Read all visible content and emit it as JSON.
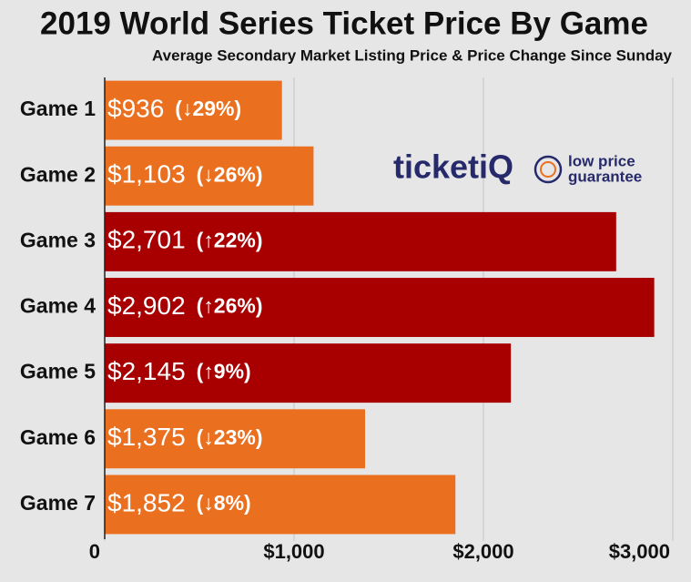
{
  "chart_data": {
    "type": "hbar",
    "title": "2019 World Series Ticket Price By Game",
    "subtitle": "Average Secondary Market Listing Price & Price Change Since Sunday",
    "categories": [
      "Game 1",
      "Game 2",
      "Game 3",
      "Game 4",
      "Game 5",
      "Game 6",
      "Game 7"
    ],
    "values": [
      936,
      1103,
      2701,
      2902,
      2145,
      1375,
      1852
    ],
    "value_labels": [
      "$936",
      "$1,103",
      "$2,701",
      "$2,902",
      "$2,145",
      "$1,375",
      "$1,852"
    ],
    "change_labels": [
      "(↓29%)",
      "(↓26%)",
      "(↑22%)",
      "(↑26%)",
      "(↑9%)",
      "(↓23%)",
      "(↓8%)"
    ],
    "colors": [
      "#ea7020",
      "#ea7020",
      "#a80000",
      "#a80000",
      "#a80000",
      "#ea7020",
      "#ea7020"
    ],
    "xlim": [
      0,
      3000
    ],
    "xticks": [
      0,
      {
        "value": 1000,
        "label": "$1,000"
      },
      {
        "value": 2000,
        "label": "$2,000"
      },
      {
        "value": 3000,
        "label": "$3,000"
      }
    ],
    "grid": true,
    "logo": {
      "brand": "ticketiQ",
      "tagline": [
        "low price",
        "guarantee"
      ]
    }
  }
}
